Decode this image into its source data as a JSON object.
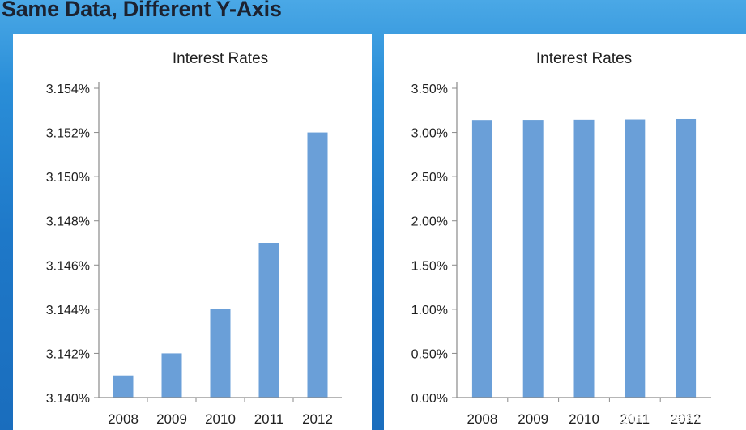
{
  "slide": {
    "title": "Same Data, Different Y-Axis"
  },
  "watermark": "@稀土掘金技术社区",
  "colors": {
    "bar": "#6a9fd8",
    "axis": "#8a8a8a",
    "text": "#1f1f1f"
  },
  "chart_data": [
    {
      "type": "bar",
      "title": "Interest Rates",
      "categories": [
        "2008",
        "2009",
        "2010",
        "2011",
        "2012"
      ],
      "values": [
        3.141,
        3.142,
        3.144,
        3.147,
        3.152
      ],
      "ylim": [
        3.14,
        3.154
      ],
      "yticks": [
        3.14,
        3.142,
        3.144,
        3.146,
        3.148,
        3.15,
        3.152,
        3.154
      ],
      "ytick_labels": [
        "3.140%",
        "3.142%",
        "3.144%",
        "3.146%",
        "3.148%",
        "3.150%",
        "3.152%",
        "3.154%"
      ],
      "xlabel": "",
      "ylabel": "",
      "grid": false,
      "legend": "none"
    },
    {
      "type": "bar",
      "title": "Interest Rates",
      "categories": [
        "2008",
        "2009",
        "2010",
        "2011",
        "2012"
      ],
      "values": [
        3.141,
        3.142,
        3.144,
        3.147,
        3.152
      ],
      "ylim": [
        0,
        3.5
      ],
      "yticks": [
        0,
        0.5,
        1,
        1.5,
        2,
        2.5,
        3,
        3.5
      ],
      "ytick_labels": [
        "0.00%",
        "0.50%",
        "1.00%",
        "1.50%",
        "2.00%",
        "2.50%",
        "3.00%",
        "3.50%"
      ],
      "xlabel": "",
      "ylabel": "",
      "grid": false,
      "legend": "none"
    }
  ]
}
